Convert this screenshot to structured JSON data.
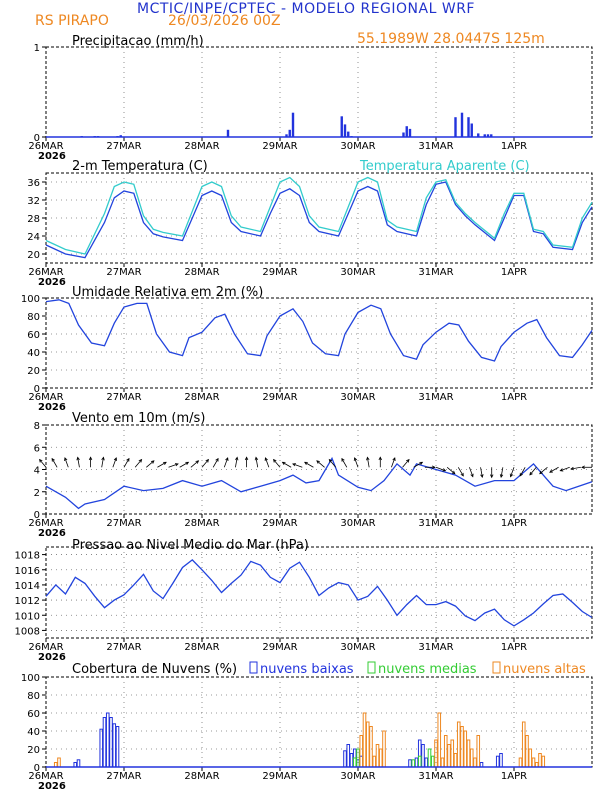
{
  "header": {
    "title": "MCTIC/INPE/CPTEC - MODELO REGIONAL WRF",
    "location": "RS PIRAPO",
    "run": "26/03/2026 00Z",
    "coords": "55.1989W  28.0447S  125m",
    "colors": {
      "title": "#2233cc",
      "accent": "#ee8822"
    }
  },
  "x_axis": {
    "labels": [
      "26MAR",
      "27MAR",
      "28MAR",
      "29MAR",
      "30MAR",
      "31MAR",
      "1APR"
    ],
    "year": "2026",
    "range_hours": [
      0,
      168
    ]
  },
  "chart_data": [
    {
      "type": "bar",
      "title": "Precipitacao (mm/h)",
      "ylim": [
        0,
        1
      ],
      "yticks": [
        "0",
        "1"
      ],
      "color": "#2233dd",
      "x": [
        11,
        15,
        16,
        22,
        23,
        56,
        74,
        75,
        76,
        91,
        92,
        93,
        94,
        110,
        111,
        112,
        126,
        128,
        130,
        131,
        133,
        135,
        136,
        137
      ],
      "values": [
        0.01,
        0.01,
        0.01,
        0.01,
        0.02,
        0.08,
        0.03,
        0.08,
        0.27,
        0.23,
        0.14,
        0.06,
        0.01,
        0.05,
        0.12,
        0.09,
        0.22,
        0.27,
        0.22,
        0.15,
        0.04,
        0.03,
        0.03,
        0.03
      ]
    },
    {
      "type": "line",
      "title": "2-m Temperatura (C)",
      "legend": [
        "Temperatura Aparente (C)"
      ],
      "ylim": [
        18,
        38
      ],
      "yticks": [
        "20",
        "24",
        "28",
        "32",
        "36"
      ],
      "hours": [
        0,
        6,
        12,
        18,
        21,
        24,
        27,
        30,
        33,
        36,
        42,
        45,
        48,
        51,
        54,
        57,
        60,
        66,
        69,
        72,
        75,
        78,
        81,
        84,
        90,
        93,
        96,
        99,
        102,
        105,
        108,
        114,
        117,
        120,
        123,
        126,
        129,
        132,
        138,
        141,
        144,
        147,
        150,
        153,
        156,
        162,
        165,
        168
      ],
      "series": [
        {
          "name": "2-m Temperatura",
          "color": "#2244dd",
          "values": [
            22.0,
            20.0,
            19.2,
            27.0,
            32.5,
            34.0,
            33.5,
            27.0,
            24.5,
            23.8,
            23.0,
            28.0,
            33.0,
            34.0,
            33.0,
            27.0,
            25.0,
            24.0,
            29.0,
            33.5,
            34.5,
            33.0,
            27.0,
            25.0,
            24.0,
            29.0,
            34.0,
            35.0,
            34.0,
            26.5,
            25.0,
            24.0,
            31.0,
            35.5,
            36.0,
            31.0,
            28.5,
            26.5,
            23.0,
            28.0,
            33.0,
            33.0,
            25.0,
            24.5,
            21.5,
            21.0,
            27.0,
            30.5
          ]
        },
        {
          "name": "Temperatura Aparente (C)",
          "color": "#33cccc",
          "values": [
            23.0,
            21.0,
            20.0,
            29.0,
            35.0,
            36.0,
            35.5,
            28.5,
            25.5,
            24.8,
            24.0,
            29.5,
            35.0,
            36.0,
            35.0,
            28.5,
            26.0,
            25.0,
            30.5,
            36.0,
            37.0,
            35.0,
            28.5,
            26.0,
            25.0,
            30.5,
            36.0,
            37.0,
            36.0,
            27.5,
            26.0,
            25.0,
            32.5,
            36.0,
            36.5,
            31.5,
            29.0,
            27.0,
            23.5,
            29.0,
            33.5,
            33.5,
            25.5,
            25.0,
            22.0,
            21.5,
            28.0,
            31.5
          ]
        }
      ]
    },
    {
      "type": "line",
      "title": "Umidade Relativa em 2m (%)",
      "ylim": [
        0,
        100
      ],
      "yticks": [
        "0",
        "20",
        "40",
        "60",
        "80",
        "100"
      ],
      "hours": [
        0,
        4,
        7,
        10,
        14,
        18,
        21,
        24,
        28,
        31,
        34,
        38,
        42,
        44,
        48,
        52,
        55,
        58,
        62,
        66,
        68,
        72,
        76,
        79,
        82,
        86,
        90,
        92,
        96,
        100,
        103,
        106,
        110,
        114,
        116,
        120,
        124,
        127,
        130,
        134,
        138,
        140,
        144,
        148,
        151,
        154,
        158,
        162,
        165,
        168
      ],
      "series": [
        {
          "name": "Umidade Relativa",
          "color": "#2244dd",
          "values": [
            96,
            98,
            94,
            70,
            50,
            47,
            72,
            90,
            94,
            94,
            60,
            40,
            36,
            56,
            62,
            78,
            82,
            60,
            38,
            36,
            58,
            80,
            88,
            74,
            50,
            38,
            36,
            60,
            84,
            92,
            88,
            60,
            36,
            32,
            48,
            62,
            72,
            70,
            52,
            34,
            30,
            46,
            62,
            72,
            76,
            56,
            36,
            34,
            48,
            64
          ]
        }
      ]
    },
    {
      "type": "line",
      "title": "Vento em 10m (m/s)",
      "ylim": [
        0,
        8
      ],
      "yticks": [
        "0",
        "2",
        "4",
        "6",
        "8"
      ],
      "hours": [
        0,
        6,
        10,
        12,
        18,
        24,
        30,
        36,
        42,
        48,
        54,
        60,
        66,
        72,
        76,
        80,
        84,
        88,
        90,
        96,
        100,
        104,
        108,
        112,
        114,
        120,
        126,
        132,
        138,
        144,
        150,
        156,
        160,
        162,
        168
      ],
      "series": [
        {
          "name": "Vento",
          "color": "#2244dd",
          "values": [
            2.5,
            1.5,
            0.5,
            0.9,
            1.3,
            2.5,
            2.1,
            2.3,
            3.0,
            2.5,
            3.0,
            2.0,
            2.5,
            3.0,
            3.5,
            2.8,
            3.0,
            5.0,
            3.5,
            2.4,
            2.1,
            3.0,
            4.5,
            3.5,
            4.5,
            4.0,
            3.5,
            2.5,
            3.0,
            3.0,
            4.5,
            2.5,
            2.1,
            2.3,
            2.9
          ]
        }
      ],
      "wind_direction_deg": [
        320,
        330,
        340,
        350,
        0,
        10,
        20,
        30,
        40,
        50,
        60,
        70,
        60,
        50,
        40,
        30,
        20,
        10,
        0,
        350,
        340,
        320,
        300,
        290,
        300,
        310,
        320,
        330,
        340,
        350,
        0,
        20,
        40,
        60,
        90,
        110,
        130,
        150,
        160,
        170,
        180,
        190,
        200,
        210,
        220,
        230,
        240,
        250,
        260,
        270
      ]
    },
    {
      "type": "line",
      "title": "Pressao ao Nivel Medio do Mar (hPa)",
      "ylim": [
        1007,
        1019
      ],
      "yticks": [
        "1008",
        "1010",
        "1012",
        "1014",
        "1016",
        "1018"
      ],
      "hours": [
        0,
        3,
        6,
        9,
        12,
        15,
        18,
        21,
        24,
        27,
        30,
        33,
        36,
        39,
        42,
        45,
        48,
        51,
        54,
        57,
        60,
        63,
        66,
        69,
        72,
        75,
        78,
        81,
        84,
        87,
        90,
        93,
        96,
        99,
        102,
        105,
        108,
        111,
        114,
        117,
        120,
        123,
        126,
        129,
        132,
        135,
        138,
        141,
        144,
        147,
        150,
        153,
        156,
        159,
        162,
        165,
        168
      ],
      "series": [
        {
          "name": "Pressao",
          "color": "#2244dd",
          "values": [
            1012.5,
            1014.0,
            1012.8,
            1015.0,
            1014.2,
            1012.5,
            1011.0,
            1012.0,
            1012.7,
            1014.0,
            1015.4,
            1013.2,
            1012.2,
            1014.2,
            1016.3,
            1017.3,
            1016.0,
            1014.6,
            1013.0,
            1014.2,
            1015.3,
            1017.1,
            1016.6,
            1015.0,
            1014.3,
            1016.2,
            1017.0,
            1015.0,
            1012.6,
            1013.6,
            1014.3,
            1014.0,
            1012.0,
            1012.5,
            1013.8,
            1012.0,
            1010.0,
            1011.4,
            1012.6,
            1011.4,
            1011.4,
            1011.8,
            1011.2,
            1009.9,
            1009.3,
            1010.3,
            1010.8,
            1009.4,
            1008.6,
            1009.4,
            1010.3,
            1011.5,
            1012.6,
            1012.8,
            1011.7,
            1010.5,
            1009.7
          ]
        }
      ]
    },
    {
      "type": "bar",
      "title": "Cobertura de Nuvens (%)",
      "ylim": [
        0,
        100
      ],
      "yticks": [
        "0",
        "20",
        "40",
        "60",
        "80",
        "100"
      ],
      "legend": [
        "nuvens baixas",
        "nuvens medias",
        "nuvens altas"
      ],
      "series": [
        {
          "name": "nuvens baixas",
          "color": "#2233dd",
          "x": [
            9,
            10,
            17,
            18,
            19,
            20,
            21,
            22,
            92,
            93,
            94,
            95,
            96,
            97,
            112,
            114,
            115,
            116,
            117,
            134,
            139,
            140
          ],
          "values": [
            5,
            8,
            42,
            55,
            60,
            55,
            48,
            45,
            18,
            25,
            15,
            20,
            8,
            12,
            8,
            10,
            30,
            25,
            10,
            5,
            12,
            15
          ]
        },
        {
          "name": "nuvens medias",
          "color": "#33cc33",
          "x": [
            95,
            96,
            113,
            115,
            118,
            119
          ],
          "values": [
            10,
            20,
            8,
            12,
            20,
            12
          ]
        },
        {
          "name": "nuvens altas",
          "color": "#ee8822",
          "x": [
            3,
            4,
            97,
            98,
            99,
            100,
            101,
            102,
            103,
            104,
            120,
            121,
            122,
            123,
            124,
            125,
            126,
            127,
            128,
            129,
            130,
            131,
            132,
            133,
            146,
            147,
            148,
            149,
            150,
            151,
            152,
            153
          ],
          "values": [
            5,
            10,
            35,
            60,
            50,
            45,
            12,
            25,
            20,
            40,
            30,
            60,
            10,
            35,
            25,
            30,
            15,
            50,
            45,
            40,
            30,
            20,
            10,
            35,
            10,
            50,
            35,
            20,
            10,
            5,
            15,
            12
          ]
        }
      ]
    }
  ]
}
